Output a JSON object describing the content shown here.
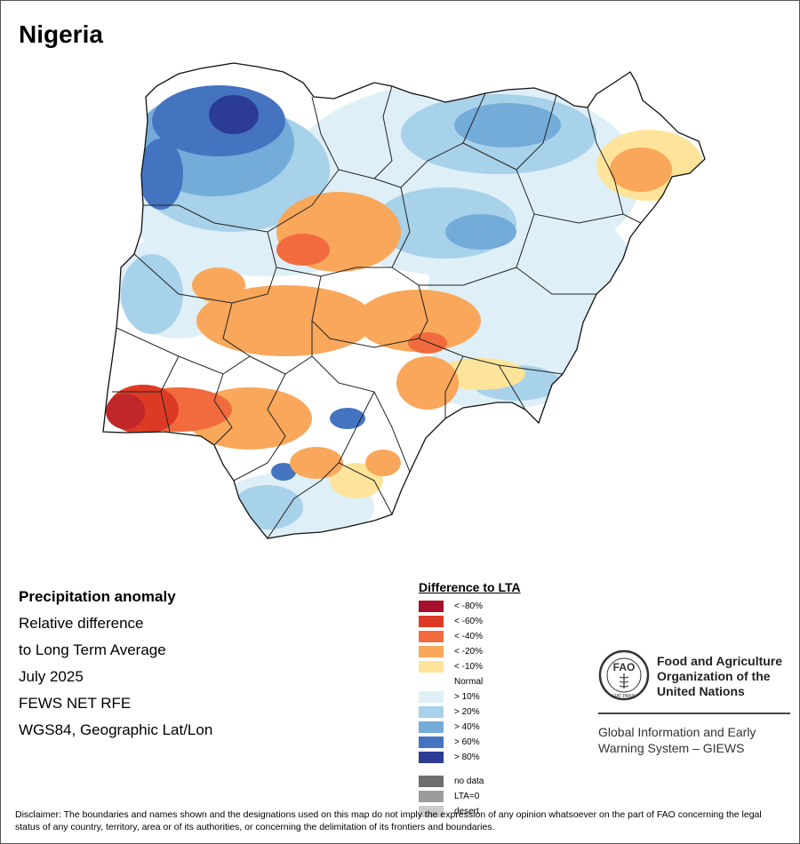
{
  "map_title": "Nigeria",
  "info": {
    "lines": [
      "Precipitation anomaly",
      "Relative difference",
      "to Long Term Average",
      "July 2025",
      "FEWS NET RFE",
      "WGS84, Geographic Lat/Lon"
    ]
  },
  "legend": {
    "title": "Difference to LTA",
    "dry": [
      {
        "label": "< -80%",
        "color": "#a50f2a"
      },
      {
        "label": "< -60%",
        "color": "#dc3a24"
      },
      {
        "label": "< -40%",
        "color": "#f26b3e"
      },
      {
        "label": "< -20%",
        "color": "#f9a75a"
      },
      {
        "label": "< -10%",
        "color": "#fee49a"
      }
    ],
    "normal_label": "Normal",
    "wet": [
      {
        "label": "> 10%",
        "color": "#deeff7"
      },
      {
        "label": "> 20%",
        "color": "#a8d1ea"
      },
      {
        "label": "> 40%",
        "color": "#74acd9"
      },
      {
        "label": "> 60%",
        "color": "#4474c0"
      },
      {
        "label": "> 80%",
        "color": "#2c3b95"
      }
    ],
    "special": [
      {
        "label": "no data",
        "color": "#6e6e6e"
      },
      {
        "label": "LTA=0",
        "color": "#9c9c9c"
      },
      {
        "label": "desert",
        "color": "#cccccc"
      }
    ]
  },
  "fao": {
    "logo_text": "FAO",
    "logo_motto": "FIAT PANIS",
    "name_lines": [
      "Food and Agriculture",
      "Organization of the",
      "United Nations"
    ],
    "system_lines": [
      "Global Information and Early",
      "Warning System – GIEWS"
    ]
  },
  "disclaimer": "Disclaimer: The boundaries and names shown and the designations used on this map do not imply the expression of any opinion whatsoever on the part of FAO concerning the legal status of any country, territory, area or of its authorities, or concerning the delimitation of its frontiers and boundaries."
}
